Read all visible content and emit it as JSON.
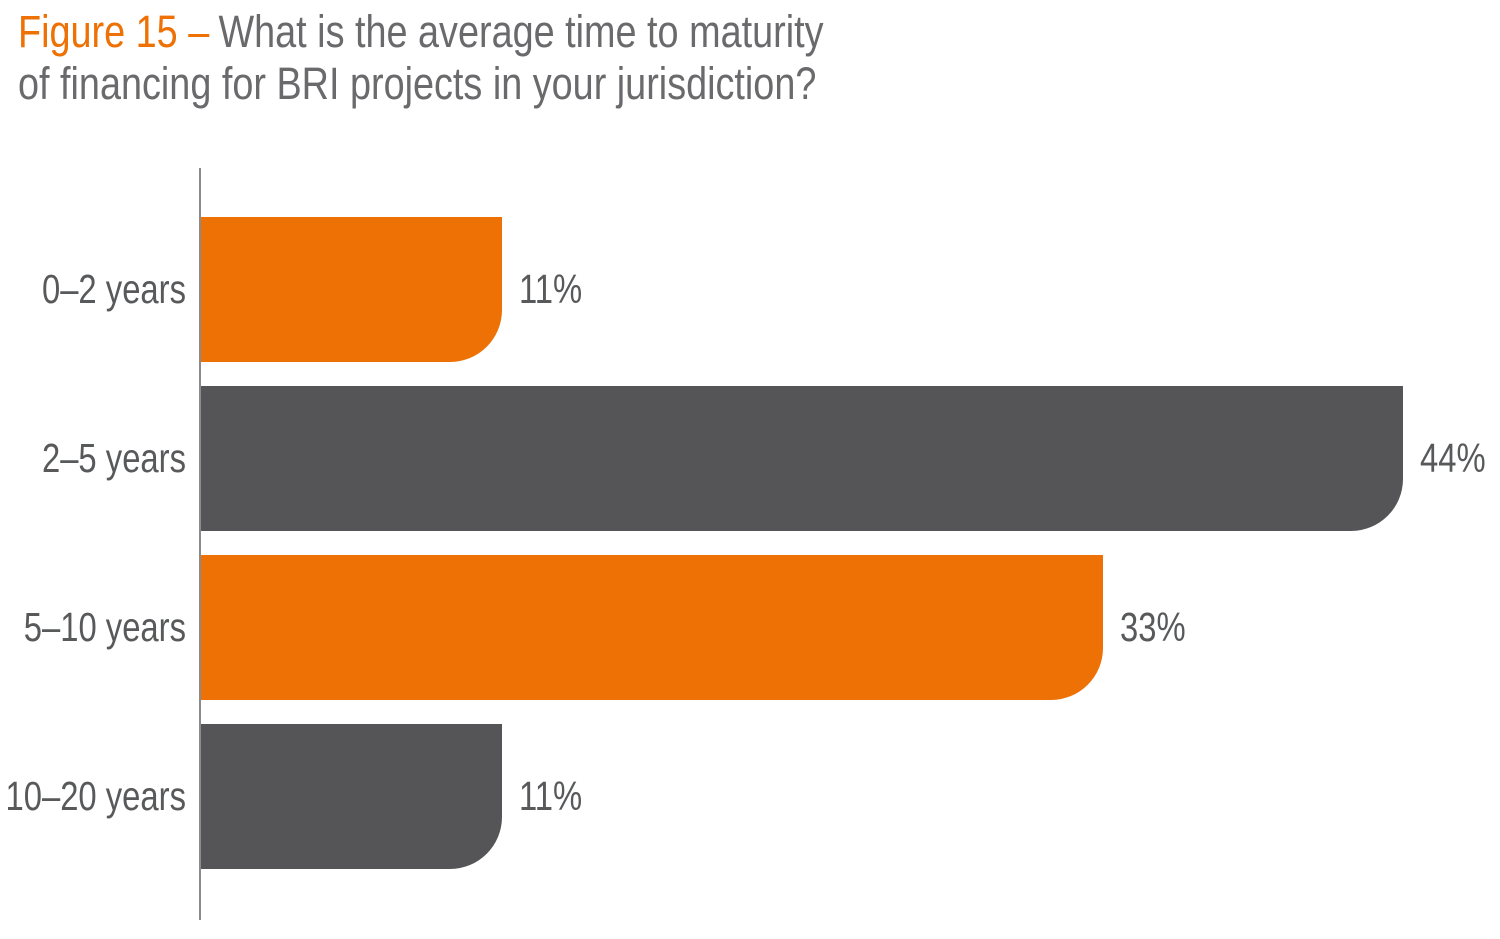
{
  "title": {
    "figure_label": "Figure 15 –",
    "line1": "What is the average time to maturity",
    "line2": "of financing for BRI projects in your jurisdiction?"
  },
  "chart_data": {
    "type": "bar",
    "orientation": "horizontal",
    "title": "Figure 15 – What is the average time to maturity of financing for BRI projects in your jurisdiction?",
    "categories": [
      "0–2 years",
      "2–5 years",
      "5–10 years",
      "10–20 years"
    ],
    "values": [
      11,
      44,
      33,
      11
    ],
    "value_labels": [
      "11%",
      "44%",
      "33%",
      "11%"
    ],
    "unit": "%",
    "xlim": [
      0,
      47.6
    ],
    "xlabel": "",
    "ylabel": "",
    "grid": false,
    "legend": "none",
    "bar_colors": [
      "#ED7104",
      "#555557",
      "#ED7104",
      "#555557"
    ]
  },
  "colors": {
    "accent_orange": "#ED7104",
    "bar_dark_gray": "#555557",
    "title_gray": "#6A6A6D",
    "label_gray": "#58595B",
    "axis_line_gray": "#8B8B8E",
    "background": "#FFFFFF"
  }
}
